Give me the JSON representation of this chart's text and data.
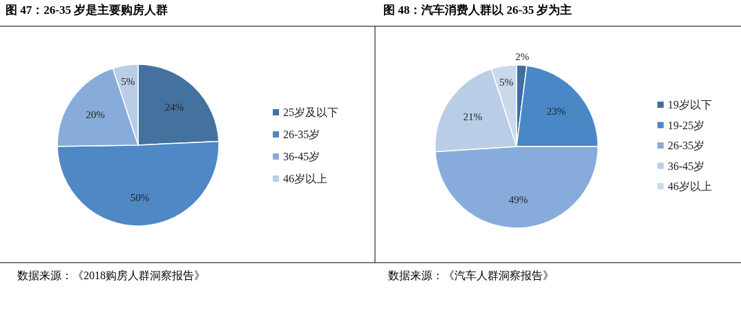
{
  "chart_data": [
    {
      "type": "pie",
      "title": "图 47：26-35 岁是主要购房人群",
      "categories": [
        "25岁及以下",
        "26-35岁",
        "36-45岁",
        "46岁以上"
      ],
      "values": [
        24,
        50,
        20,
        5
      ],
      "colors": [
        "#44729f",
        "#4f88c4",
        "#87acda",
        "#b9cde6"
      ],
      "value_labels": [
        "24%",
        "50%",
        "20%",
        "5%"
      ],
      "legend": "right",
      "annotations": [
        "数据来源：《2018购房人群洞察报告》"
      ]
    },
    {
      "type": "pie",
      "title": "图 48：汽车消费人群以 26-35 岁为主",
      "categories": [
        "19岁以下",
        "19-25岁",
        "26-35岁",
        "36-45岁",
        "46岁以上"
      ],
      "values": [
        2,
        23,
        49,
        21,
        5
      ],
      "colors": [
        "#3f6e9f",
        "#4a87c6",
        "#87acdb",
        "#b9cde6",
        "#c9d8eb"
      ],
      "value_labels": [
        "2%",
        "23%",
        "49%",
        "21%",
        "5%"
      ],
      "legend": "right",
      "annotations": [
        "数据来源：《汽车人群洞察报告》"
      ]
    }
  ]
}
